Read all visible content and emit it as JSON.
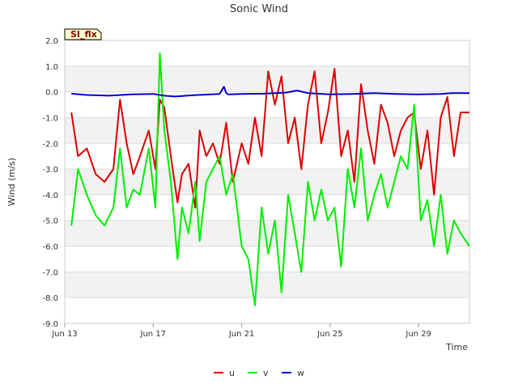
{
  "chart_data": {
    "type": "line",
    "title": "Sonic Wind",
    "xlabel": "Time",
    "ylabel": "Wind (m/s)",
    "site_tag": "SI_flx",
    "ylim": [
      -9.0,
      2.0
    ],
    "yticks": [
      2.0,
      1.0,
      0.0,
      -1.0,
      -2.0,
      -3.0,
      -4.0,
      -5.0,
      -6.0,
      -7.0,
      -8.0,
      -9.0
    ],
    "ytick_labels": [
      "2.0",
      "1.0",
      "0.0",
      "-1.0",
      "-2.0",
      "-3.0",
      "-4.0",
      "-5.0",
      "-6.0",
      "-7.0",
      "-8.0",
      "-9.0"
    ],
    "xlim": [
      "2024-06-13",
      "2024-07-03"
    ],
    "xtick_labels": [
      "Jun 13",
      "Jun 17",
      "Jun 21",
      "Jun 25",
      "Jun 29"
    ],
    "xtick_days": [
      0,
      4,
      8,
      12,
      16
    ],
    "x_range_days": [
      0,
      18.3
    ],
    "grid": true,
    "legend_position": "bottom-center",
    "colors": {
      "u": "#dd0000",
      "v": "#00ee00",
      "w": "#0000cc",
      "band": "#f2f2f2",
      "grid": "#dddddd",
      "tag_bg": "#ffffcc"
    },
    "series": [
      {
        "name": "u",
        "color": "#dd0000",
        "x": [
          0.3,
          0.6,
          1.0,
          1.4,
          1.8,
          2.2,
          2.5,
          2.8,
          3.1,
          3.4,
          3.8,
          4.1,
          4.3,
          4.5,
          4.8,
          5.1,
          5.3,
          5.6,
          5.9,
          6.1,
          6.4,
          6.7,
          7.0,
          7.3,
          7.6,
          8.0,
          8.3,
          8.6,
          8.9,
          9.2,
          9.5,
          9.8,
          10.1,
          10.4,
          10.7,
          11.0,
          11.3,
          11.6,
          11.9,
          12.2,
          12.5,
          12.8,
          13.1,
          13.4,
          13.7,
          14.0,
          14.3,
          14.6,
          14.9,
          15.2,
          15.5,
          15.8,
          16.1,
          16.4,
          16.7,
          17.0,
          17.3,
          17.6,
          17.9,
          18.3
        ],
        "values": [
          -0.8,
          -2.5,
          -2.2,
          -3.2,
          -3.5,
          -3.0,
          -0.3,
          -2.0,
          -3.2,
          -2.5,
          -1.5,
          -3.0,
          -0.3,
          -0.6,
          -2.5,
          -4.3,
          -3.2,
          -2.8,
          -4.5,
          -1.5,
          -2.5,
          -2.0,
          -2.8,
          -1.2,
          -3.5,
          -2.0,
          -2.8,
          -1.0,
          -2.5,
          0.8,
          -0.5,
          0.6,
          -2.0,
          -1.0,
          -3.0,
          -0.5,
          0.8,
          -2.0,
          -0.8,
          0.9,
          -2.5,
          -1.5,
          -3.5,
          0.3,
          -1.5,
          -2.8,
          -0.5,
          -1.2,
          -2.5,
          -1.5,
          -1.0,
          -0.8,
          -3.0,
          -1.5,
          -4.0,
          -1.0,
          -0.2,
          -2.5,
          -0.8,
          -0.8
        ]
      },
      {
        "name": "v",
        "color": "#00ee00",
        "x": [
          0.3,
          0.6,
          1.0,
          1.4,
          1.8,
          2.2,
          2.5,
          2.8,
          3.1,
          3.4,
          3.8,
          4.1,
          4.3,
          4.5,
          4.8,
          5.1,
          5.3,
          5.6,
          5.9,
          6.1,
          6.4,
          6.7,
          7.0,
          7.3,
          7.6,
          8.0,
          8.3,
          8.6,
          8.9,
          9.2,
          9.5,
          9.8,
          10.1,
          10.4,
          10.7,
          11.0,
          11.3,
          11.6,
          11.9,
          12.2,
          12.5,
          12.8,
          13.1,
          13.4,
          13.7,
          14.0,
          14.3,
          14.6,
          14.9,
          15.2,
          15.5,
          15.8,
          16.1,
          16.4,
          16.7,
          17.0,
          17.3,
          17.6,
          17.9,
          18.3
        ],
        "values": [
          -5.2,
          -3.0,
          -4.0,
          -4.8,
          -5.2,
          -4.5,
          -2.2,
          -4.5,
          -3.8,
          -4.0,
          -2.2,
          -4.5,
          1.5,
          -1.5,
          -3.5,
          -6.5,
          -4.5,
          -5.5,
          -3.5,
          -5.8,
          -3.5,
          -3.0,
          -2.5,
          -4.0,
          -3.2,
          -6.0,
          -6.5,
          -8.3,
          -4.5,
          -6.3,
          -5.0,
          -7.8,
          -4.0,
          -5.5,
          -7.0,
          -3.5,
          -5.0,
          -3.8,
          -5.0,
          -4.5,
          -6.8,
          -3.0,
          -4.5,
          -2.2,
          -5.0,
          -4.0,
          -3.2,
          -4.5,
          -3.5,
          -2.5,
          -3.0,
          -0.5,
          -5.0,
          -4.2,
          -6.0,
          -4.0,
          -6.3,
          -5.0,
          -5.5,
          -6.0
        ]
      },
      {
        "name": "w",
        "color": "#0000cc",
        "x": [
          0.3,
          1.0,
          2.0,
          3.0,
          4.0,
          4.5,
          5.0,
          5.5,
          6.0,
          7.0,
          7.2,
          7.3,
          7.4,
          8.0,
          9.0,
          10.0,
          10.5,
          11.0,
          12.0,
          13.0,
          14.0,
          15.0,
          16.0,
          17.0,
          17.5,
          18.3
        ],
        "values": [
          -0.07,
          -0.12,
          -0.15,
          -0.1,
          -0.08,
          -0.15,
          -0.18,
          -0.15,
          -0.12,
          -0.08,
          0.2,
          -0.05,
          -0.1,
          -0.08,
          -0.07,
          -0.03,
          0.05,
          -0.05,
          -0.1,
          -0.08,
          -0.05,
          -0.08,
          -0.1,
          -0.08,
          -0.05,
          -0.05
        ]
      }
    ]
  }
}
